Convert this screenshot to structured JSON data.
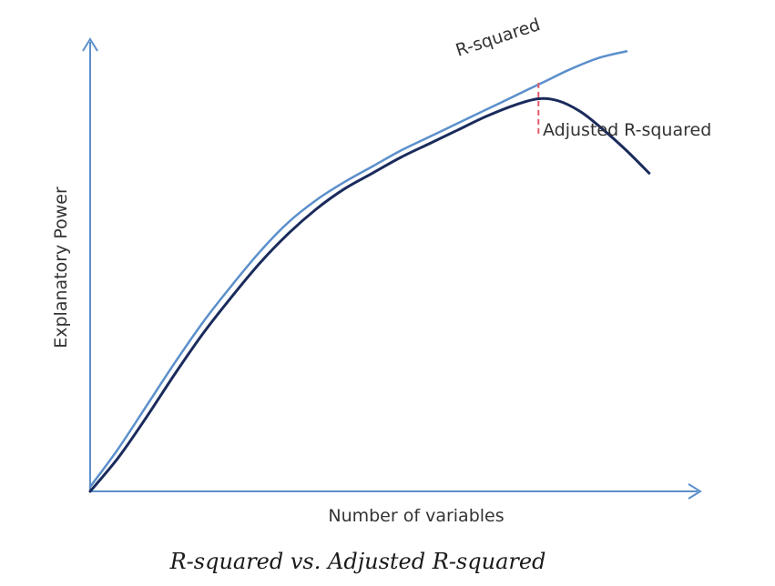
{
  "chart_data": {
    "type": "line",
    "caption": "R-squared vs. Adjusted R-squared",
    "xlabel": "Number of variables",
    "ylabel": "Explanatory Power",
    "xlim": [
      0,
      10
    ],
    "ylim": [
      0,
      10
    ],
    "grid": false,
    "axis_ticks": false,
    "peak_marker": {
      "x": 7.94,
      "style": "dashed",
      "color": "#e05a6b"
    },
    "series": [
      {
        "name": "R-squared",
        "color": "#5b8fcb",
        "label_rotation_deg": -18,
        "x": [
          0,
          0.5,
          1,
          1.5,
          2,
          2.5,
          3,
          3.5,
          4,
          4.5,
          5,
          5.5,
          6,
          6.5,
          7,
          7.5,
          8,
          8.5,
          9,
          9.5
        ],
        "y": [
          0.1,
          0.95,
          1.9,
          2.85,
          3.75,
          4.55,
          5.3,
          5.95,
          6.45,
          6.85,
          7.2,
          7.55,
          7.85,
          8.15,
          8.45,
          8.75,
          9.05,
          9.35,
          9.6,
          9.75
        ]
      },
      {
        "name": "Adjusted R-squared",
        "color": "#1a2b5c",
        "label_rotation_deg": 0,
        "x": [
          0,
          0.5,
          1,
          1.5,
          2,
          2.5,
          3,
          3.5,
          4,
          4.5,
          5,
          5.5,
          6,
          6.5,
          7,
          7.5,
          7.94,
          8.3,
          8.7,
          9.1,
          9.5,
          9.9
        ],
        "y": [
          0,
          0.75,
          1.65,
          2.6,
          3.5,
          4.3,
          5.05,
          5.7,
          6.25,
          6.7,
          7.05,
          7.4,
          7.7,
          8.0,
          8.3,
          8.55,
          8.7,
          8.65,
          8.4,
          8.0,
          7.55,
          7.05
        ]
      }
    ]
  }
}
